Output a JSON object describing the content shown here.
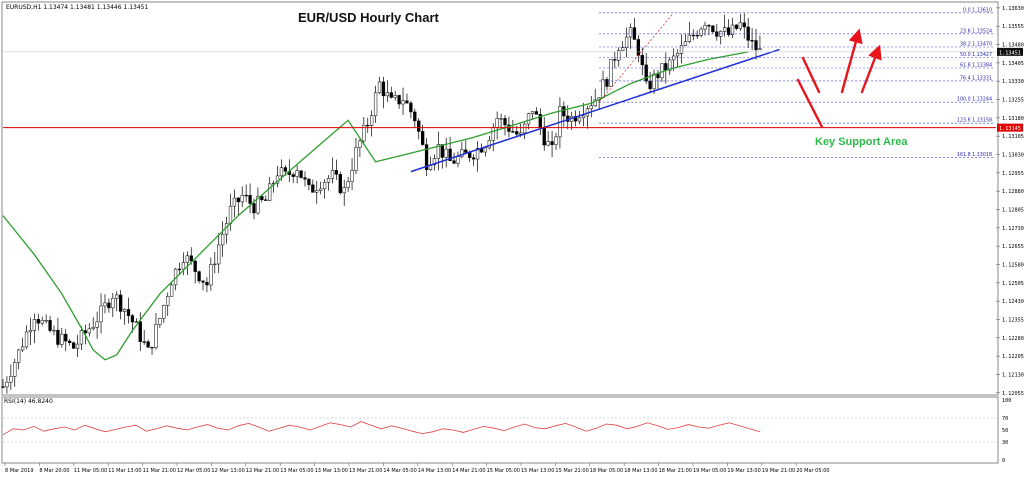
{
  "header": {
    "symbol_info": "EURUSD,H1  1.13474 1.13481 1.13446 1.13451",
    "title": "EUR/USD Hourly Chart"
  },
  "annotations": {
    "key_support": "Key Support Area"
  },
  "colors": {
    "candle": "#000000",
    "ma": "#2e9e2e",
    "trendline": "#1f2fd6",
    "fib": "#3a3acf",
    "horizontal_level": "#e00000",
    "support_text": "#2eb84a",
    "rsi": "#e04040",
    "arrows": "#e8141c",
    "price_tag_bg": "#111111",
    "red_tag_bg": "#e00000"
  },
  "icons": {
    "arrow": "arrow-icon"
  },
  "chart_data": {
    "type": "candlestick",
    "title": "EUR/USD Hourly Chart",
    "ylim": [
      1.1205,
      1.1365
    ],
    "y_ticks": [
      "1.13630",
      "1.13555",
      "1.13480",
      "1.13405",
      "1.13330",
      "1.13255",
      "1.13180",
      "1.13105",
      "1.13030",
      "1.12955",
      "1.12880",
      "1.12805",
      "1.12730",
      "1.12655",
      "1.12580",
      "1.12505",
      "1.12430",
      "1.12355",
      "1.12280",
      "1.12205",
      "1.12130",
      "1.12055"
    ],
    "x_ticks": [
      "8 Mar 2019",
      "8 Mar 20:00",
      "11 Mar 05:00",
      "11 Mar 13:00",
      "11 Mar 21:00",
      "12 Mar 05:00",
      "12 Mar 13:00",
      "12 Mar 21:00",
      "13 Mar 05:00",
      "13 Mar 13:00",
      "13 Mar 21:00",
      "14 Mar 05:00",
      "14 Mar 13:00",
      "14 Mar 21:00",
      "15 Mar 05:00",
      "15 Mar 13:00",
      "15 Mar 21:00",
      "18 Mar 05:00",
      "18 Mar 13:00",
      "18 Mar 21:00",
      "19 Mar 05:00",
      "19 Mar 13:00",
      "19 Mar 21:00",
      "20 Mar 05:00"
    ],
    "price_path": [
      [
        0,
        1.1208
      ],
      [
        4,
        1.1222
      ],
      [
        8,
        1.1238
      ],
      [
        11,
        1.1232
      ],
      [
        14,
        1.1228
      ],
      [
        18,
        1.1224
      ],
      [
        22,
        1.1232
      ],
      [
        25,
        1.1238
      ],
      [
        28,
        1.1246
      ],
      [
        31,
        1.124
      ],
      [
        34,
        1.1232
      ],
      [
        37,
        1.1222
      ],
      [
        40,
        1.1236
      ],
      [
        43,
        1.1252
      ],
      [
        46,
        1.1262
      ],
      [
        49,
        1.1256
      ],
      [
        52,
        1.125
      ],
      [
        55,
        1.1266
      ],
      [
        58,
        1.128
      ],
      [
        61,
        1.1286
      ],
      [
        64,
        1.1282
      ],
      [
        67,
        1.1284
      ],
      [
        70,
        1.1296
      ],
      [
        72,
        1.1294
      ],
      [
        75,
        1.1298
      ],
      [
        78,
        1.1288
      ],
      [
        81,
        1.1292
      ],
      [
        84,
        1.1294
      ],
      [
        87,
        1.1288
      ],
      [
        90,
        1.1304
      ],
      [
        93,
        1.1316
      ],
      [
        96,
        1.1332
      ],
      [
        99,
        1.1324
      ],
      [
        102,
        1.1326
      ],
      [
        105,
        1.1318
      ],
      [
        108,
        1.13
      ],
      [
        111,
        1.1306
      ],
      [
        114,
        1.13
      ],
      [
        117,
        1.1302
      ],
      [
        120,
        1.1304
      ],
      [
        123,
        1.1308
      ],
      [
        126,
        1.1318
      ],
      [
        129,
        1.1314
      ],
      [
        132,
        1.131
      ],
      [
        135,
        1.1322
      ],
      [
        138,
        1.131
      ],
      [
        140,
        1.1304
      ],
      [
        142,
        1.132
      ],
      [
        145,
        1.1318
      ],
      [
        148,
        1.1322
      ],
      [
        151,
        1.1326
      ],
      [
        154,
        1.1334
      ],
      [
        157,
        1.1348
      ],
      [
        160,
        1.1352
      ],
      [
        162,
        1.1346
      ],
      [
        164,
        1.133
      ],
      [
        167,
        1.1336
      ],
      [
        170,
        1.134
      ],
      [
        173,
        1.1346
      ],
      [
        176,
        1.1352
      ],
      [
        179,
        1.1358
      ],
      [
        182,
        1.1354
      ],
      [
        185,
        1.1352
      ],
      [
        188,
        1.1356
      ],
      [
        191,
        1.1348
      ],
      [
        193,
        1.1345
      ]
    ],
    "ma_path": [
      [
        0,
        1.1278
      ],
      [
        8,
        1.1262
      ],
      [
        15,
        1.1246
      ],
      [
        20,
        1.1232
      ],
      [
        23,
        1.1223
      ],
      [
        26,
        1.1219
      ],
      [
        29,
        1.1221
      ],
      [
        33,
        1.1231
      ],
      [
        40,
        1.1246
      ],
      [
        50,
        1.1262
      ],
      [
        60,
        1.1278
      ],
      [
        70,
        1.1292
      ],
      [
        80,
        1.1306
      ],
      [
        88,
        1.1317
      ],
      [
        95,
        1.13
      ],
      [
        100,
        1.1302
      ],
      [
        110,
        1.1306
      ],
      [
        120,
        1.131
      ],
      [
        130,
        1.1315
      ],
      [
        140,
        1.132
      ],
      [
        150,
        1.1324
      ],
      [
        160,
        1.1332
      ],
      [
        170,
        1.1338
      ],
      [
        180,
        1.1342
      ],
      [
        190,
        1.1345
      ]
    ],
    "trendline": [
      [
        104,
        1.1296
      ],
      [
        198,
        1.1346
      ]
    ],
    "horizontal_level": {
      "value": 1.1314,
      "label": "1.13145"
    },
    "current_price": {
      "value": 1.1345,
      "label": "1.13451"
    },
    "fibonacci": [
      {
        "label": "0.0  1.13610",
        "value": 1.1361
      },
      {
        "label": "23.6  1.13524",
        "value": 1.13524
      },
      {
        "label": "38.2  1.13470",
        "value": 1.1347
      },
      {
        "label": "50.0  1.13427",
        "value": 1.13427
      },
      {
        "label": "61.8  1.13384",
        "value": 1.13384
      },
      {
        "label": "76.4  1.13331",
        "value": 1.13331
      },
      {
        "label": "100.0  1.13244",
        "value": 1.13244
      },
      {
        "label": "123.6  1.13158",
        "value": 1.13158
      },
      {
        "label": "161.8  1.13018",
        "value": 1.13018
      }
    ],
    "rsi": {
      "label": "RSI(14) 46.8240",
      "ylim": [
        0,
        100
      ],
      "y_ticks": [
        "100",
        "70",
        "50",
        "30",
        "0"
      ],
      "levels": [
        70,
        30
      ],
      "values": [
        42,
        52,
        50,
        56,
        48,
        52,
        55,
        50,
        58,
        52,
        47,
        51,
        55,
        58,
        48,
        52,
        57,
        53,
        50,
        55,
        59,
        53,
        50,
        57,
        61,
        55,
        48,
        53,
        58,
        55,
        50,
        56,
        62,
        59,
        55,
        64,
        58,
        52,
        57,
        53,
        48,
        44,
        47,
        52,
        50,
        46,
        51,
        56,
        53,
        49,
        55,
        60,
        54,
        52,
        57,
        61,
        55,
        48,
        53,
        60,
        58,
        52,
        56,
        62,
        57,
        51,
        54,
        59,
        55,
        53,
        58,
        62,
        57,
        52,
        47
      ]
    }
  }
}
